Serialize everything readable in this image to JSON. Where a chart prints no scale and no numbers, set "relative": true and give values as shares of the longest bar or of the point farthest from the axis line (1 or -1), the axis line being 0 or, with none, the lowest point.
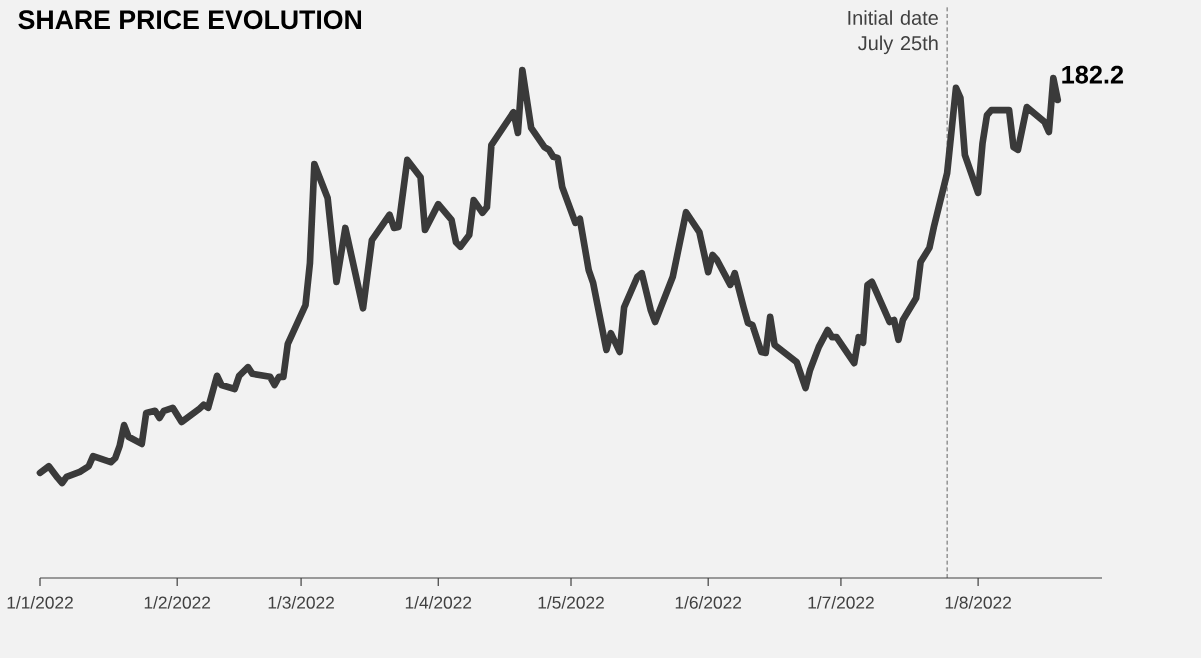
{
  "chart_data": {
    "type": "line",
    "relative": true,
    "title": "SHARE PRICE EVOLUTION",
    "color": "#3a3a3a",
    "x": [
      "2022-01-01",
      "2022-01-03",
      "2022-01-05",
      "2022-01-06",
      "2022-01-07",
      "2022-01-10",
      "2022-01-12",
      "2022-01-13",
      "2022-01-17",
      "2022-01-18",
      "2022-01-19",
      "2022-01-20",
      "2022-01-21",
      "2022-01-24",
      "2022-01-25",
      "2022-01-27",
      "2022-01-28",
      "2022-01-29",
      "2022-01-31",
      "2022-02-02",
      "2022-02-06",
      "2022-02-07",
      "2022-02-08",
      "2022-02-10",
      "2022-02-11",
      "2022-02-14",
      "2022-02-15",
      "2022-02-17",
      "2022-02-18",
      "2022-02-22",
      "2022-02-23",
      "2022-02-24",
      "2022-02-25",
      "2022-02-26",
      "2022-03-02",
      "2022-03-03",
      "2022-03-04",
      "2022-03-07",
      "2022-03-09",
      "2022-03-11",
      "2022-03-15",
      "2022-03-17",
      "2022-03-21",
      "2022-03-22",
      "2022-03-23",
      "2022-03-25",
      "2022-03-28",
      "2022-03-29",
      "2022-04-01",
      "2022-04-04",
      "2022-04-05",
      "2022-04-06",
      "2022-04-08",
      "2022-04-09",
      "2022-04-11",
      "2022-04-12",
      "2022-04-13",
      "2022-04-18",
      "2022-04-19",
      "2022-04-20",
      "2022-04-22",
      "2022-04-25",
      "2022-04-26",
      "2022-04-27",
      "2022-04-28",
      "2022-04-29",
      "2022-05-02",
      "2022-05-03",
      "2022-05-05",
      "2022-05-06",
      "2022-05-09",
      "2022-05-10",
      "2022-05-12",
      "2022-05-13",
      "2022-05-16",
      "2022-05-17",
      "2022-05-19",
      "2022-05-20",
      "2022-05-24",
      "2022-05-27",
      "2022-05-30",
      "2022-06-01",
      "2022-06-02",
      "2022-06-03",
      "2022-06-06",
      "2022-06-07",
      "2022-06-09",
      "2022-06-10",
      "2022-06-11",
      "2022-06-13",
      "2022-06-14",
      "2022-06-15",
      "2022-06-16",
      "2022-06-21",
      "2022-06-23",
      "2022-06-24",
      "2022-06-26",
      "2022-06-28",
      "2022-06-29",
      "2022-06-30",
      "2022-07-04",
      "2022-07-05",
      "2022-07-06",
      "2022-07-07",
      "2022-07-08",
      "2022-07-12",
      "2022-07-13",
      "2022-07-14",
      "2022-07-15",
      "2022-07-18",
      "2022-07-19",
      "2022-07-21",
      "2022-07-22",
      "2022-07-25",
      "2022-07-27",
      "2022-07-28",
      "2022-07-29",
      "2022-08-01",
      "2022-08-02",
      "2022-08-03",
      "2022-08-04",
      "2022-08-08",
      "2022-08-09",
      "2022-08-10",
      "2022-08-12",
      "2022-08-16",
      "2022-08-17",
      "2022-08-18",
      "2022-08-19"
    ],
    "values": [
      0.207,
      0.22,
      0.197,
      0.187,
      0.199,
      0.209,
      0.22,
      0.24,
      0.228,
      0.236,
      0.26,
      0.301,
      0.278,
      0.264,
      0.325,
      0.329,
      0.315,
      0.329,
      0.335,
      0.307,
      0.333,
      0.341,
      0.335,
      0.398,
      0.38,
      0.372,
      0.398,
      0.415,
      0.402,
      0.396,
      0.38,
      0.396,
      0.396,
      0.461,
      0.537,
      0.62,
      0.815,
      0.748,
      0.583,
      0.689,
      0.531,
      0.665,
      0.715,
      0.689,
      0.691,
      0.823,
      0.789,
      0.685,
      0.736,
      0.705,
      0.661,
      0.652,
      0.675,
      0.744,
      0.719,
      0.73,
      0.852,
      0.917,
      0.876,
      1,
      0.886,
      0.848,
      0.843,
      0.829,
      0.827,
      0.77,
      0.699,
      0.707,
      0.606,
      0.581,
      0.449,
      0.482,
      0.445,
      0.533,
      0.593,
      0.6,
      0.528,
      0.504,
      0.593,
      0.72,
      0.681,
      0.602,
      0.636,
      0.626,
      0.577,
      0.6,
      0.533,
      0.502,
      0.498,
      0.445,
      0.443,
      0.514,
      0.459,
      0.425,
      0.374,
      0.409,
      0.455,
      0.488,
      0.474,
      0.474,
      0.423,
      0.474,
      0.463,
      0.577,
      0.583,
      0.504,
      0.508,
      0.469,
      0.508,
      0.551,
      0.622,
      0.65,
      0.691,
      0.797,
      0.965,
      0.945,
      0.833,
      0.758,
      0.856,
      0.911,
      0.921,
      0.921,
      0.848,
      0.843,
      0.927,
      0.898,
      0.878,
      0.984,
      0.941
    ],
    "xlim": [
      "2022-01-01",
      "2022-08-29"
    ],
    "xticks": [
      {
        "value": "2022-01-01",
        "label": "1/1/2022"
      },
      {
        "value": "2022-02-01",
        "label": "1/2/2022"
      },
      {
        "value": "2022-03-01",
        "label": "1/3/2022"
      },
      {
        "value": "2022-04-01",
        "label": "1/4/2022"
      },
      {
        "value": "2022-05-01",
        "label": "1/5/2022"
      },
      {
        "value": "2022-06-01",
        "label": "1/6/2022"
      },
      {
        "value": "2022-07-01",
        "label": "1/7/2022"
      },
      {
        "value": "2022-08-01",
        "label": "1/8/2022"
      }
    ],
    "ref_lines": [
      {
        "axis": "x",
        "value": "2022-07-25",
        "label": "Initial date July 25th",
        "line_style": "dashed"
      }
    ],
    "annotations": [
      {
        "text": "182.2",
        "x": "2022-08-19",
        "y": 0.941
      }
    ]
  }
}
